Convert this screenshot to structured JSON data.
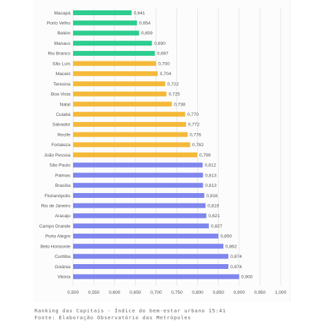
{
  "chart_data": {
    "type": "bar",
    "orientation": "horizontal",
    "categories": [
      "Macapá",
      "Porto Velho",
      "Belém",
      "Manaus",
      "Rio Branco",
      "São Luís",
      "Maceió",
      "Teresina",
      "Boa Vista",
      "Natal",
      "Cuiabá",
      "Salvador",
      "Recife",
      "Fortaleza",
      "João Pessoa",
      "São Paulo",
      "Palmas",
      "Brasília",
      "Florianópolis",
      "Rio de Janeiro",
      "Aracaju",
      "Campo Grande",
      "Porto Alegre",
      "Belo Horizonte",
      "Curitiba",
      "Goiânia",
      "Vitória"
    ],
    "values": [
      0.641,
      0.654,
      0.659,
      0.69,
      0.697,
      0.7,
      0.704,
      0.722,
      0.725,
      0.738,
      0.77,
      0.772,
      0.776,
      0.782,
      0.799,
      0.812,
      0.813,
      0.813,
      0.816,
      0.819,
      0.821,
      0.827,
      0.85,
      0.862,
      0.874,
      0.874,
      0.9
    ],
    "value_labels": [
      "0,641",
      "0,654",
      "0,659",
      "0,690",
      "0,697",
      "0,700",
      "0,704",
      "0,722",
      "0,725",
      "0,738",
      "0,770",
      "0,772",
      "0,776",
      "0,782",
      "0,799",
      "0,812",
      "0,813",
      "0,813",
      "0,816",
      "0,819",
      "0,821",
      "0,827",
      "0,850",
      "0,862",
      "0,874",
      "0,874",
      "0,900"
    ],
    "bar_colors": [
      "#2dcc8f",
      "#2dcc8f",
      "#2dcc8f",
      "#2dcc8f",
      "#2dcc8f",
      "#f5b93a",
      "#f5b93a",
      "#f5b93a",
      "#f5b93a",
      "#f5b93a",
      "#f5b93a",
      "#f5b93a",
      "#f5b93a",
      "#f5b93a",
      "#f5b93a",
      "#7f86ee",
      "#7f86ee",
      "#7f86ee",
      "#7f86ee",
      "#7f86ee",
      "#7f86ee",
      "#7f86ee",
      "#7f86ee",
      "#7f86ee",
      "#7f86ee",
      "#7f86ee",
      "#7f86ee"
    ],
    "xlim": [
      0.5,
      1.0
    ],
    "x_ticks": [
      "0,500",
      "0,550",
      "0,600",
      "0,650",
      "0,700",
      "0,750",
      "0,800",
      "0,850",
      "0,900",
      "0,950",
      "1,000"
    ],
    "grid": "vertical",
    "title": "",
    "xlabel": "",
    "ylabel": ""
  },
  "caption": {
    "line1": "Ranking das Capitais - Índice do bem-estar urbano 15:41",
    "line2": "Fonte: Elaboração Observatório das Metrópoles"
  },
  "colors": {
    "grid": "#e6e6e6",
    "text": "#555555"
  }
}
